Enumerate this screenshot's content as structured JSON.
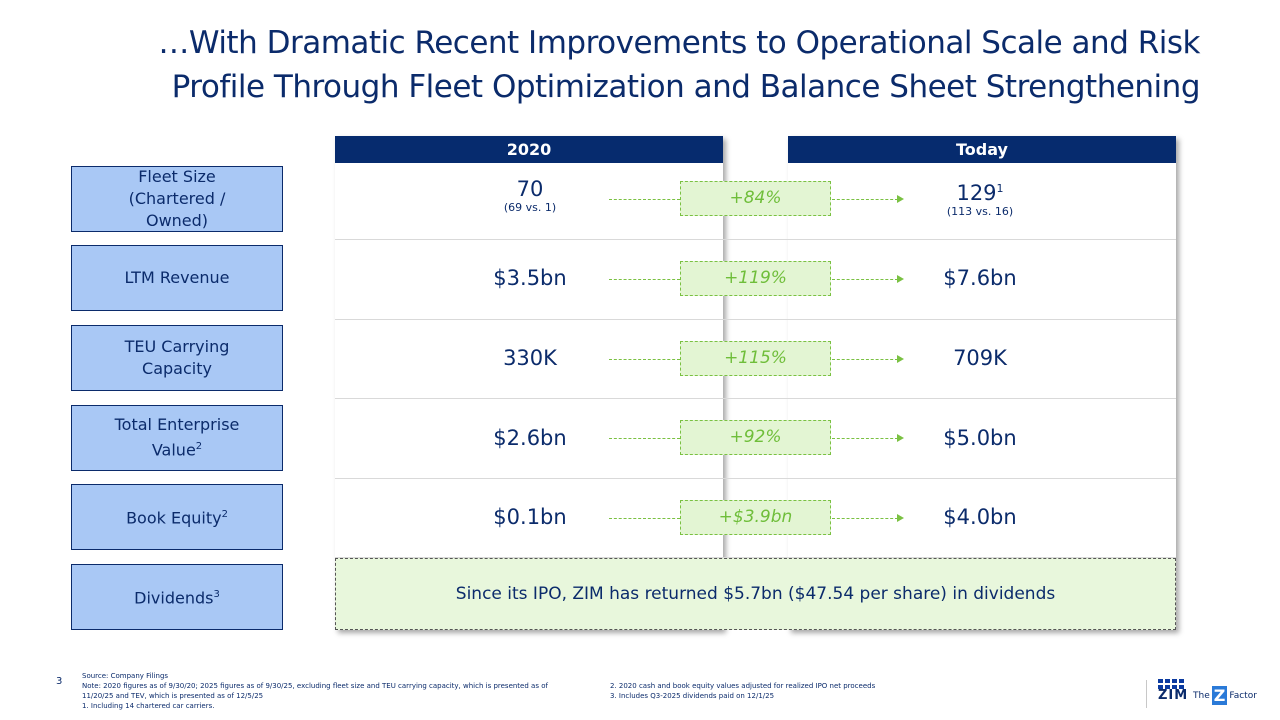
{
  "title": {
    "line1": "…With Dramatic Recent Improvements to Operational Scale and Risk",
    "line2": "Profile Through Fleet Optimization and Balance Sheet Strengthening"
  },
  "columns": {
    "left": "2020",
    "right": "Today"
  },
  "rows": [
    {
      "label": "Fleet Size (Chartered / Owned)",
      "v2020": "70",
      "v2020_sub": "(69 vs. 1)",
      "change": "+84%",
      "today": "129",
      "today_sup": "1",
      "today_sub": "(113 vs. 16)"
    },
    {
      "label": "LTM Revenue",
      "v2020": "$3.5bn",
      "change": "+119%",
      "today": "$7.6bn"
    },
    {
      "label": "TEU Carrying Capacity",
      "v2020": "330K",
      "change": "+115%",
      "today": "709K"
    },
    {
      "label": "Total Enterprise Value",
      "label_sup": "2",
      "v2020": "$2.6bn",
      "change": "+92%",
      "today": "$5.0bn"
    },
    {
      "label": "Book Equity",
      "label_sup": "2",
      "v2020": "$0.1bn",
      "change": "+$3.9bn",
      "today": "$4.0bn"
    },
    {
      "label": "Dividends",
      "label_sup": "3"
    }
  ],
  "dividends_text": "Since its IPO, ZIM has returned $5.7bn ($47.54 per share) in dividends",
  "footer": {
    "page": "3",
    "source": "Source: Company Filings",
    "note": "Note: 2020 figures as of 9/30/20; 2025 figures as of 9/30/25, excluding fleet size and TEU carrying capacity, which is presented as of",
    "note2": "11/20/25 and TEV, which is presented as of 12/5/25",
    "fn1": "1.        Including 14 chartered car carriers.",
    "fn2": "2.        2020 cash and book equity values adjusted for realized IPO net proceeds",
    "fn3": "3.        Includes Q3-2025 dividends paid on 12/1/25"
  },
  "brand": {
    "logo": "ZIM",
    "tagline_pre": "The",
    "tagline_mark": "Z",
    "tagline_post": "Factor"
  }
}
